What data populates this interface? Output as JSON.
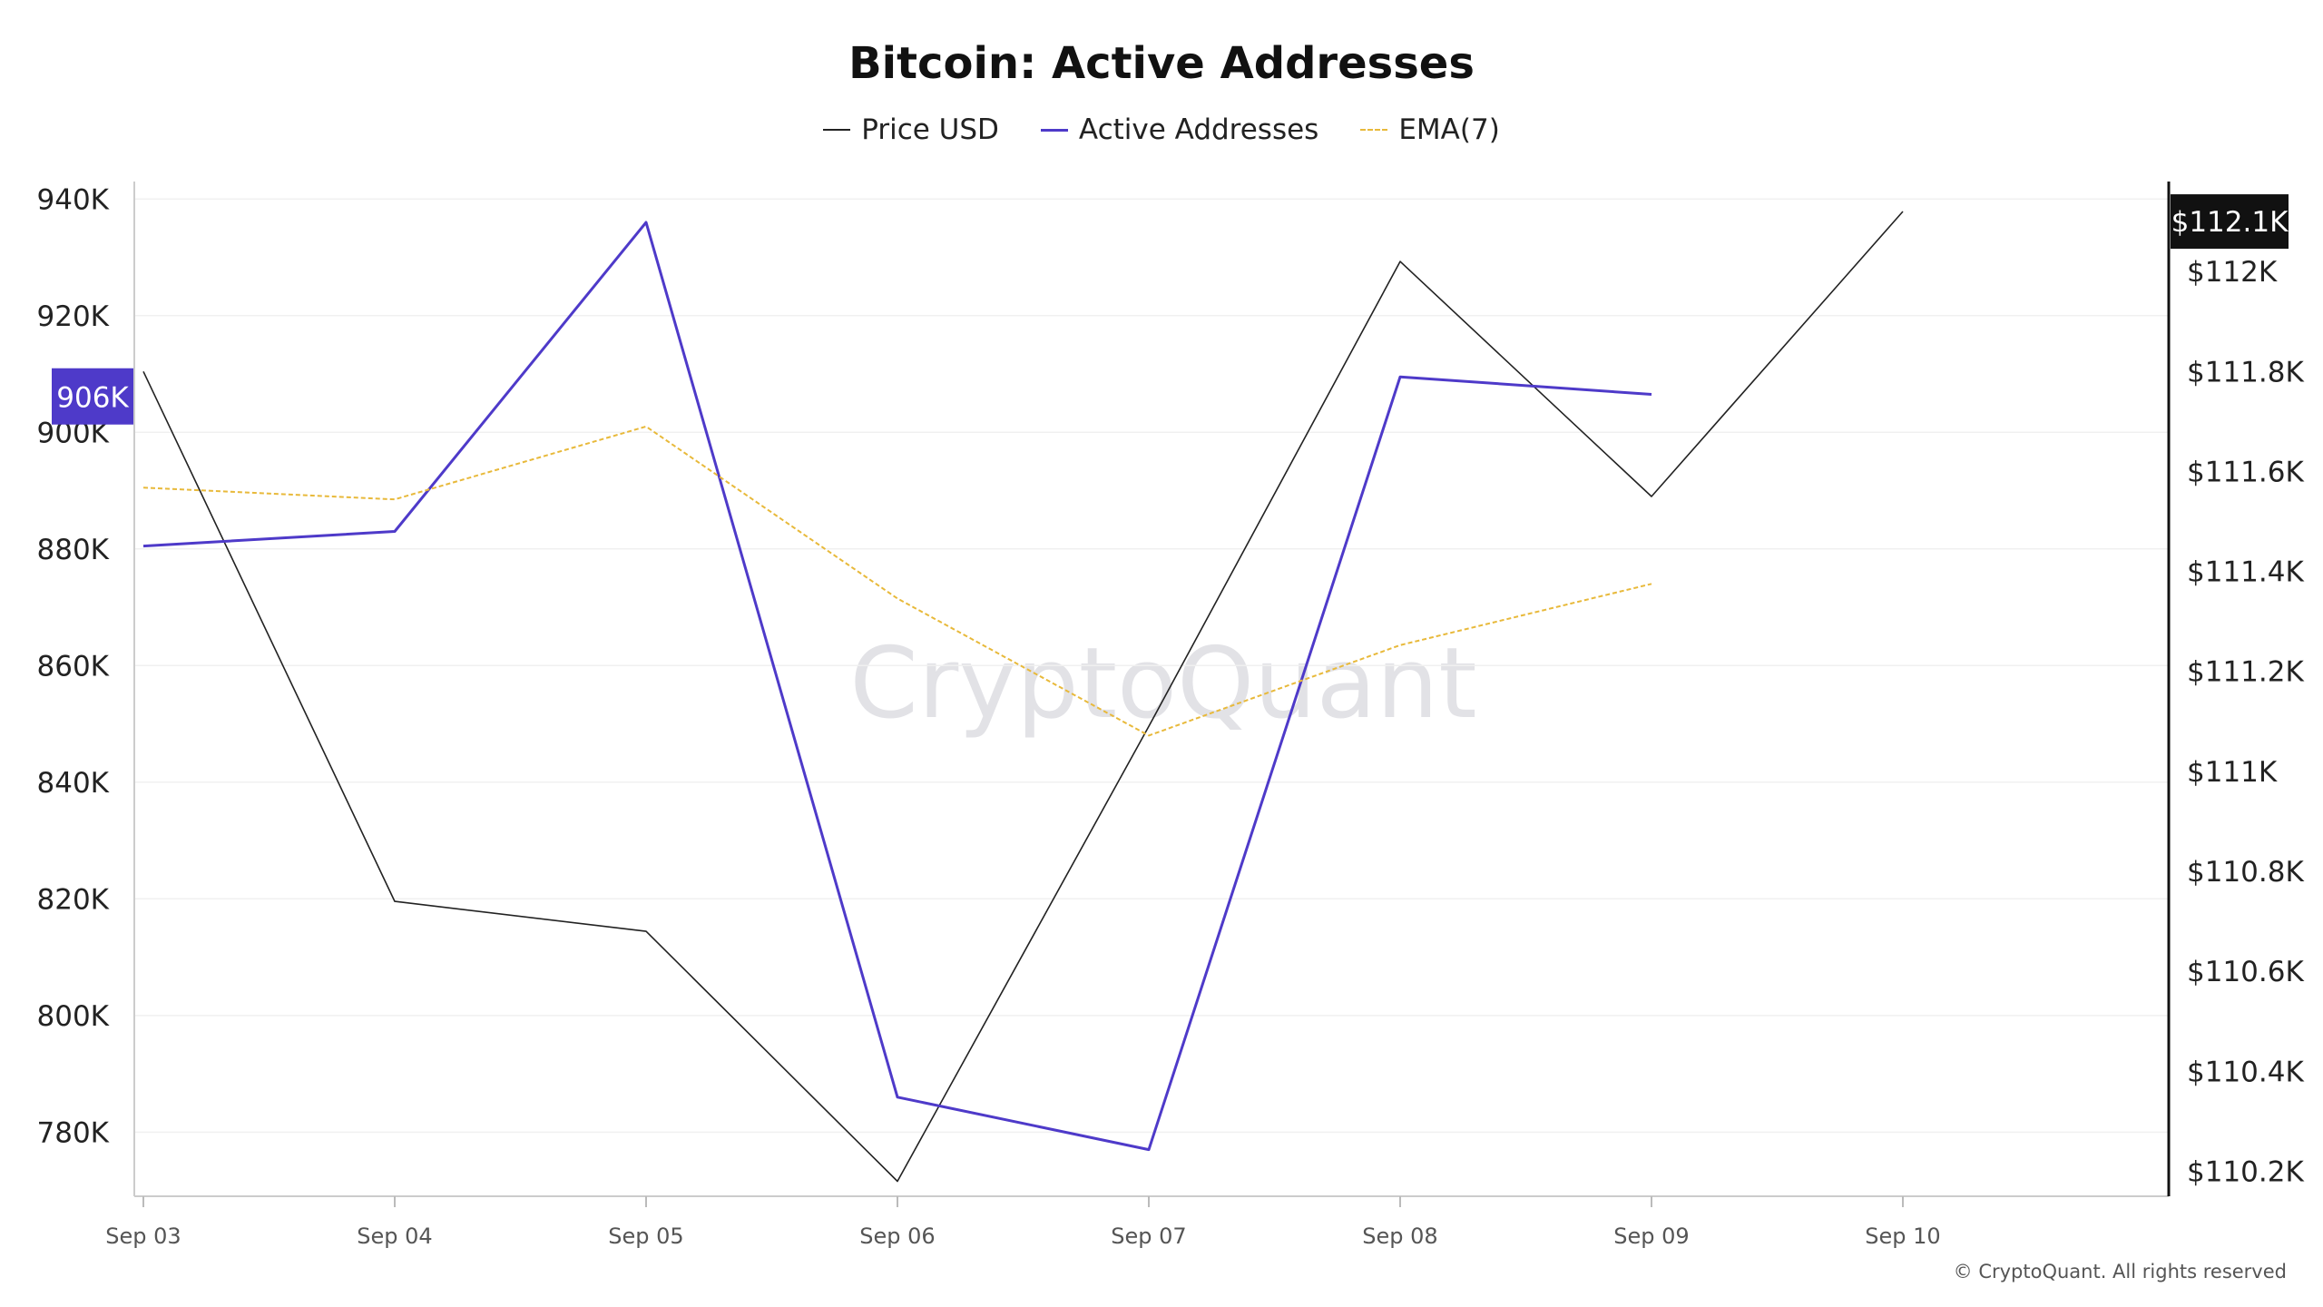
{
  "chart_data": {
    "type": "line",
    "title": "Bitcoin: Active Addresses",
    "categories": [
      "Sep 03",
      "Sep 04",
      "Sep 05",
      "Sep 06",
      "Sep 07",
      "Sep 08",
      "Sep 09",
      "Sep 10"
    ],
    "series": [
      {
        "name": "Price USD",
        "axis": "right",
        "color": "#222222",
        "style": "solid",
        "values": [
          111.8,
          110.74,
          110.68,
          110.18,
          111.09,
          112.02,
          111.55,
          112.12
        ]
      },
      {
        "name": "Active Addresses",
        "axis": "left",
        "color": "#4e3ac9",
        "style": "solid",
        "values": [
          880500,
          883000,
          936000,
          786000,
          777000,
          909500,
          906500,
          null
        ]
      },
      {
        "name": "EMA(7)",
        "axis": "left",
        "color": "#e8b93a",
        "style": "dashed",
        "values": [
          890500,
          888500,
          901000,
          871500,
          848000,
          863500,
          874000,
          null
        ]
      }
    ],
    "y_left": {
      "ticks": [
        "780K",
        "800K",
        "820K",
        "840K",
        "860K",
        "880K",
        "900K",
        "920K",
        "940K"
      ],
      "tick_values": [
        780000,
        800000,
        820000,
        840000,
        860000,
        880000,
        900000,
        920000,
        940000
      ],
      "range": [
        769000,
        943000
      ]
    },
    "y_right": {
      "ticks": [
        "$110.2K",
        "$110.4K",
        "$110.6K",
        "$110.8K",
        "$111K",
        "$111.2K",
        "$111.4K",
        "$111.6K",
        "$111.8K",
        "$112K"
      ],
      "tick_values": [
        110.2,
        110.4,
        110.6,
        110.8,
        111.0,
        111.2,
        111.4,
        111.6,
        111.8,
        112.0
      ],
      "range": [
        110.15,
        112.18
      ]
    },
    "left_badge": {
      "label": "906K",
      "value": 906000,
      "color": "#4e3ac9"
    },
    "right_badge": {
      "label": "$112.1K",
      "value": 112.1,
      "color": "#111111"
    },
    "grid": true,
    "legend_position": "top-center"
  },
  "watermark": "CryptoQuant",
  "copyright": "© CryptoQuant. All rights reserved"
}
